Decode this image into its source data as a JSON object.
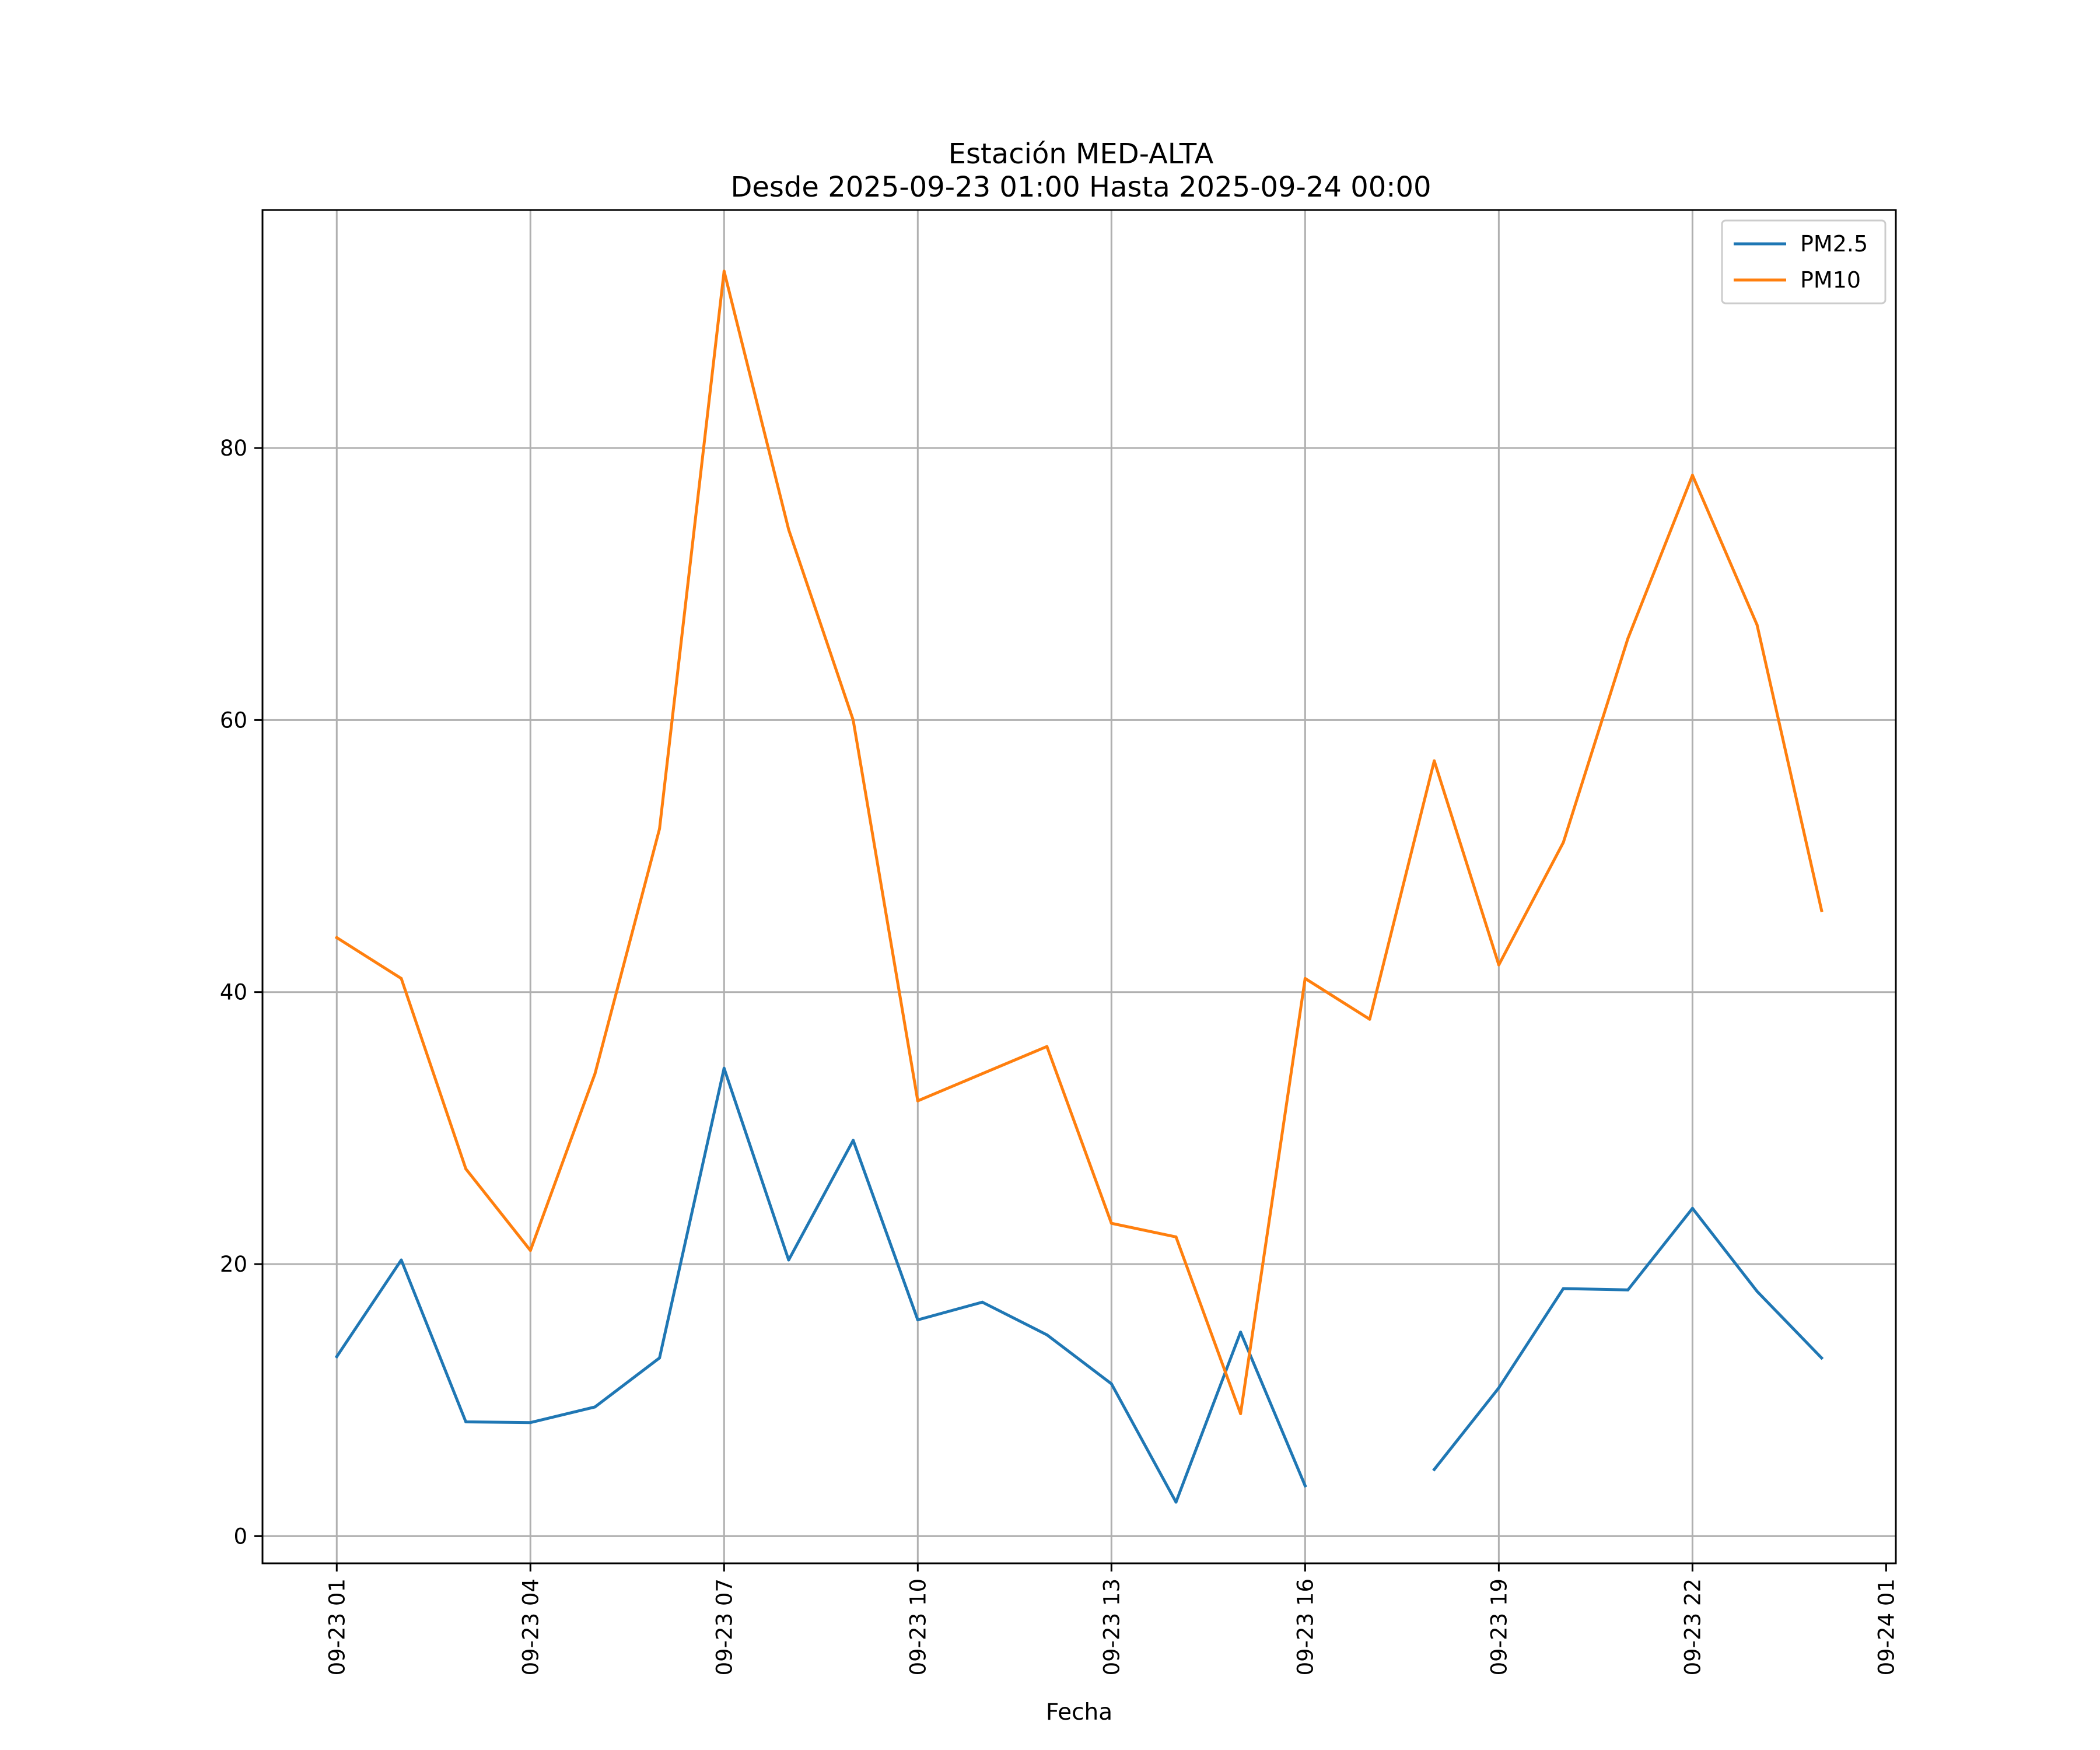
{
  "chart_data": {
    "type": "line",
    "title_line1": "Estación MED-ALTA",
    "title_line2": "Desde 2025-09-23 01:00 Hasta 2025-09-24 00:00",
    "xlabel": "Fecha",
    "ylabel": "",
    "x": [
      "09-23 01",
      "09-23 02",
      "09-23 03",
      "09-23 04",
      "09-23 05",
      "09-23 06",
      "09-23 07",
      "09-23 08",
      "09-23 09",
      "09-23 10",
      "09-23 11",
      "09-23 12",
      "09-23 13",
      "09-23 14",
      "09-23 15",
      "09-23 16",
      "09-23 17",
      "09-23 18",
      "09-23 19",
      "09-23 20",
      "09-23 21",
      "09-23 22",
      "09-23 23",
      "09-24 00"
    ],
    "x_hours": [
      1,
      2,
      3,
      4,
      5,
      6,
      7,
      8,
      9,
      10,
      11,
      12,
      13,
      14,
      15,
      16,
      17,
      18,
      19,
      20,
      21,
      22,
      23,
      24
    ],
    "xlim_hours": [
      -0.15,
      25.15
    ],
    "x_ticks": [
      {
        "hour": 1,
        "label": "09-23 01"
      },
      {
        "hour": 4,
        "label": "09-23 04"
      },
      {
        "hour": 7,
        "label": "09-23 07"
      },
      {
        "hour": 10,
        "label": "09-23 10"
      },
      {
        "hour": 13,
        "label": "09-23 13"
      },
      {
        "hour": 16,
        "label": "09-23 16"
      },
      {
        "hour": 19,
        "label": "09-23 19"
      },
      {
        "hour": 22,
        "label": "09-23 22"
      },
      {
        "hour": 25,
        "label": "09-24 01"
      }
    ],
    "ylim": [
      -2,
      97.5
    ],
    "y_ticks": [
      0,
      20,
      40,
      60,
      80
    ],
    "grid": true,
    "legend_position": "top-right",
    "series": [
      {
        "name": "PM2.5",
        "color": "#1f77b4",
        "values": [
          13.2,
          20.3,
          8.4,
          8.35,
          9.5,
          13.1,
          34.4,
          20.3,
          29.1,
          15.9,
          17.2,
          14.8,
          11.2,
          2.5,
          15.0,
          3.7,
          null,
          4.9,
          10.9,
          18.2,
          18.1,
          24.1,
          18.0,
          13.1
        ]
      },
      {
        "name": "PM10",
        "color": "#ff7f0e",
        "values": [
          44,
          41,
          27,
          21,
          34,
          52,
          93,
          74,
          60,
          32,
          34,
          36,
          23,
          22,
          9,
          41,
          38,
          57,
          42,
          51,
          66,
          78,
          67,
          46
        ]
      }
    ]
  }
}
